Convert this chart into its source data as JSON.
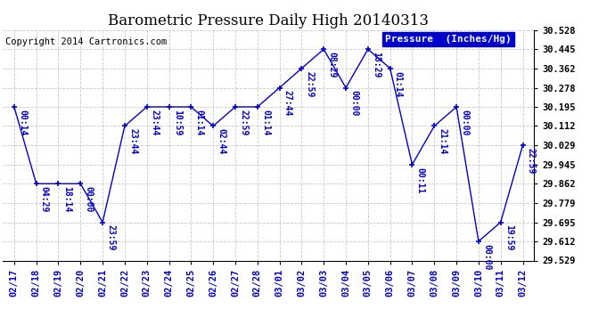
{
  "title": "Barometric Pressure Daily High 20140313",
  "copyright": "Copyright 2014 Cartronics.com",
  "legend_label": "Pressure  (Inches/Hg)",
  "dates": [
    "02/17",
    "02/18",
    "02/19",
    "02/20",
    "02/21",
    "02/22",
    "02/23",
    "02/24",
    "02/25",
    "02/26",
    "02/27",
    "02/28",
    "03/01",
    "03/02",
    "03/03",
    "03/04",
    "03/05",
    "03/06",
    "03/07",
    "03/08",
    "03/09",
    "03/10",
    "03/11",
    "03/12"
  ],
  "values": [
    30.195,
    29.862,
    29.862,
    29.862,
    29.695,
    30.112,
    30.195,
    30.195,
    30.195,
    30.112,
    30.195,
    30.195,
    30.278,
    30.362,
    30.445,
    30.278,
    30.445,
    30.362,
    29.945,
    30.112,
    30.195,
    29.612,
    29.695,
    30.029
  ],
  "point_labels": [
    "00:14",
    "04:29",
    "18:14",
    "00:00",
    "23:59",
    "23:44",
    "23:44",
    "10:59",
    "01:14",
    "02:44",
    "22:59",
    "01:14",
    "27:44",
    "22:59",
    "08:29",
    "00:00",
    "18:29",
    "01:14",
    "00:11",
    "21:14",
    "00:00",
    "00:00",
    "19:59",
    "22:59"
  ],
  "line_color": "#0000CC",
  "marker_color": "#0000CC",
  "label_color": "#0000CC",
  "bg_color": "#ffffff",
  "grid_color": "#bbbbbb",
  "ylim_min": 29.529,
  "ylim_max": 30.528,
  "yticks": [
    29.529,
    29.612,
    29.695,
    29.779,
    29.862,
    29.945,
    30.029,
    30.112,
    30.195,
    30.278,
    30.362,
    30.445,
    30.528
  ],
  "title_fontsize": 12,
  "copyright_fontsize": 7.5,
  "tick_fontsize": 7.5,
  "label_fontsize": 7.0
}
